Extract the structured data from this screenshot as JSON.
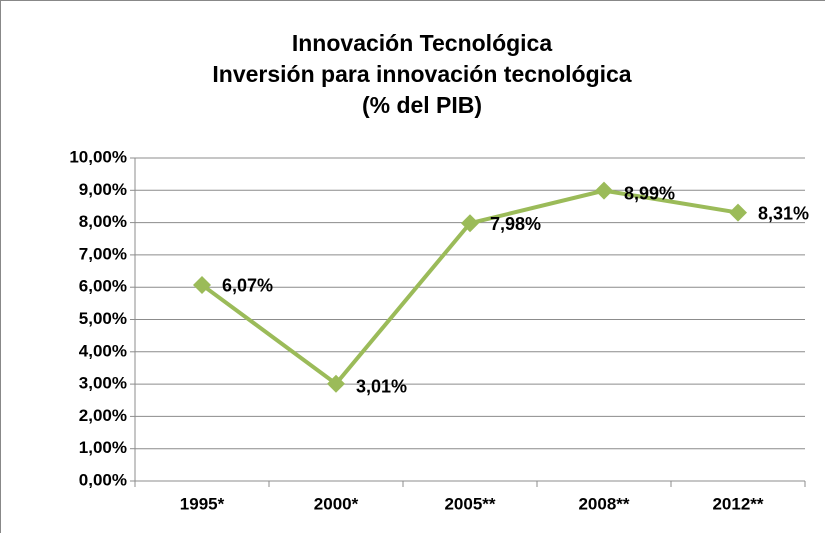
{
  "chart_data": {
    "type": "line",
    "title": [
      "Innovación Tecnológica",
      "Inversión para innovación tecnológica",
      "(% del PIB)"
    ],
    "categories": [
      "1995*",
      "2000*",
      "2005**",
      "2008**",
      "2012**"
    ],
    "series": [
      {
        "name": "Inversión para innovación tecnológica",
        "color": "#9bbb59",
        "values": [
          6.07,
          3.01,
          7.98,
          8.99,
          8.31
        ],
        "value_labels": [
          "6,07%",
          "3,01%",
          "7,98%",
          "8,99%",
          "8,31%"
        ]
      }
    ],
    "ylim": [
      0,
      10
    ],
    "yticks": [
      {
        "value": 0,
        "label": "0,00%"
      },
      {
        "value": 1,
        "label": "1,00%"
      },
      {
        "value": 2,
        "label": "2,00%"
      },
      {
        "value": 3,
        "label": "3,00%"
      },
      {
        "value": 4,
        "label": "4,00%"
      },
      {
        "value": 5,
        "label": "5,00%"
      },
      {
        "value": 6,
        "label": "6,00%"
      },
      {
        "value": 7,
        "label": "7,00%"
      },
      {
        "value": 8,
        "label": "8,00%"
      },
      {
        "value": 9,
        "label": "9,00%"
      },
      {
        "value": 10,
        "label": "10,00%"
      }
    ],
    "grid": true,
    "legend": false
  }
}
